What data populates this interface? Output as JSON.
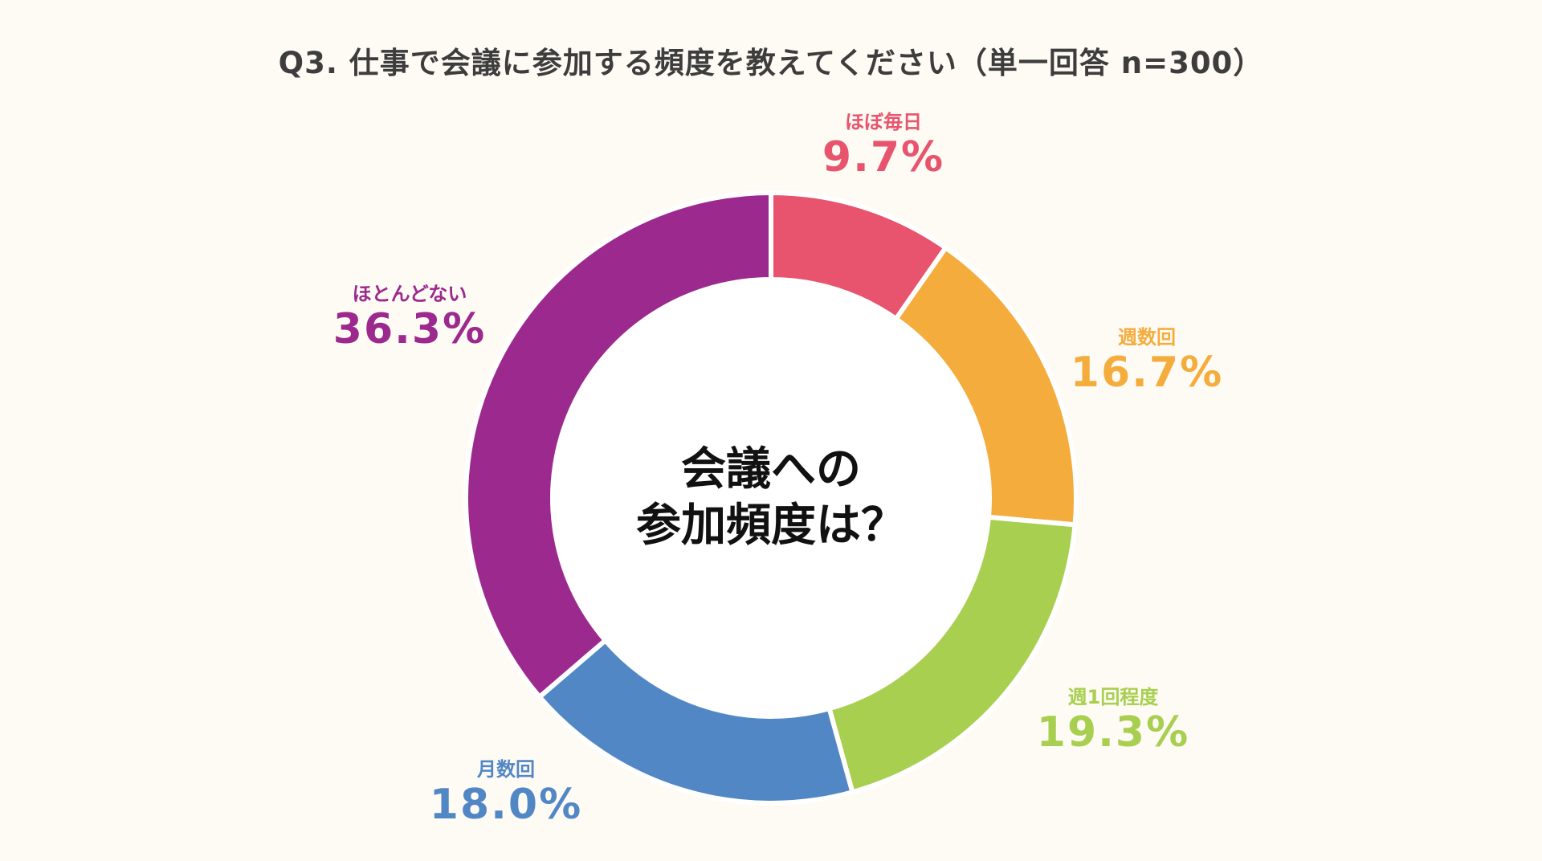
{
  "title": "Q3. 仕事で会議に参加する頻度を教えてください（単一回答 n=300）",
  "center": {
    "line1": "会議への",
    "line2": "参加頻度は？"
  },
  "chart_data": {
    "type": "pie",
    "donut": true,
    "title": "Q3. 仕事で会議に参加する頻度を教えてください（単一回答 n=300）",
    "unit": "%",
    "categories": [
      "ほぼ毎日",
      "週数回",
      "週1回程度",
      "月数回",
      "ほとんどない"
    ],
    "values": [
      9.7,
      16.7,
      19.3,
      18.0,
      36.3
    ],
    "labels": [
      "9.7%",
      "16.7%",
      "19.3%",
      "18.0%",
      "36.3%"
    ],
    "colors": [
      "#e8546d",
      "#f4ad3d",
      "#a8cf50",
      "#5287c6",
      "#9c2a8e"
    ],
    "legend": "none (labels placed beside each slice)"
  }
}
